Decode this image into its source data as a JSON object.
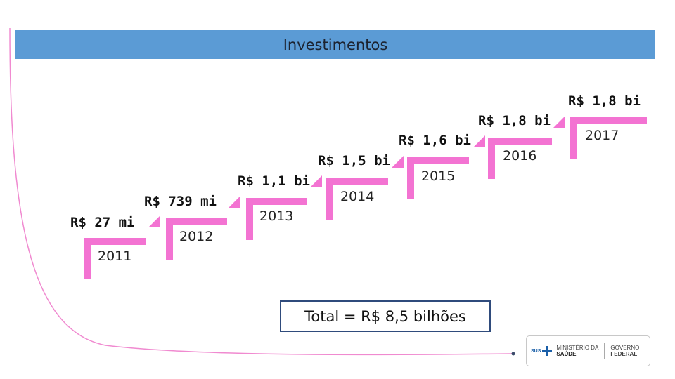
{
  "title": "Investimentos",
  "steps": [
    {
      "value": "R$ 27 mi",
      "year": "2011"
    },
    {
      "value": "R$ 739 mi",
      "year": "2012"
    },
    {
      "value": "R$ 1,1 bi",
      "year": "2013"
    },
    {
      "value": "R$ 1,5 bi",
      "year": "2014"
    },
    {
      "value": "R$ 1,6 bi",
      "year": "2015"
    },
    {
      "value": "R$ 1,8 bi",
      "year": "2016"
    },
    {
      "value": "R$ 1,8 bi",
      "year": "2017"
    }
  ],
  "total": "Total = R$ 8,5 bilhões",
  "logo": {
    "sus": "SUS",
    "ministry_line1": "MINISTÉRIO DA",
    "ministry_line2": "SAÚDE",
    "gov_line1": "GOVERNO",
    "gov_line2": "FEDERAL"
  },
  "colors": {
    "title_bar": "#5b9bd5",
    "step": "#f373d2",
    "box_border": "#2f4b7c",
    "deco_line": "#f08ad0"
  }
}
